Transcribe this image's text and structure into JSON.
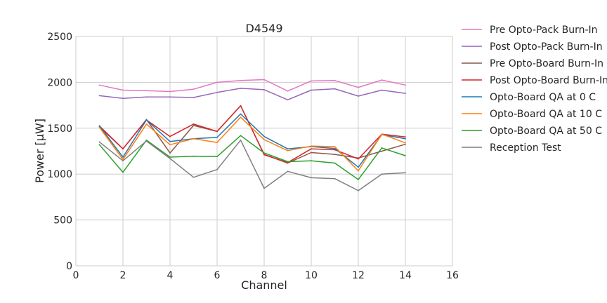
{
  "chart_data": {
    "type": "line",
    "title": "D4549",
    "xlabel": "Channel",
    "ylabel": "Power [μW]",
    "xlim": [
      0,
      16
    ],
    "ylim": [
      0,
      2500
    ],
    "xticks": [
      "0",
      "2",
      "4",
      "6",
      "8",
      "10",
      "12",
      "14",
      "16"
    ],
    "yticks": [
      "0",
      "500",
      "1000",
      "1500",
      "2000",
      "2500"
    ],
    "grid": true,
    "legend_position": "outside-right",
    "x": [
      1,
      2,
      3,
      4,
      5,
      6,
      7,
      8,
      9,
      10,
      11,
      12,
      13,
      14
    ],
    "series": [
      {
        "name": "Pre Opto-Pack Burn-In",
        "color": "#e377c2",
        "values": [
          1970,
          1915,
          1910,
          1900,
          1925,
          2000,
          2020,
          2030,
          1905,
          2015,
          2020,
          1945,
          2025,
          1970
        ]
      },
      {
        "name": "Post Opto-Pack Burn-In",
        "color": "#9467bd",
        "values": [
          1855,
          1825,
          1840,
          1840,
          1835,
          1890,
          1935,
          1920,
          1810,
          1915,
          1930,
          1850,
          1915,
          1880
        ]
      },
      {
        "name": "Pre Opto-Board Burn-In",
        "color": "#8c564b",
        "values": [
          1515,
          1275,
          1595,
          1230,
          1530,
          1465,
          1745,
          1215,
          1120,
          1235,
          1215,
          1175,
          1250,
          1325
        ]
      },
      {
        "name": "Post Opto-Board Burn-In",
        "color": "#d62728",
        "values": [
          1525,
          1275,
          1590,
          1410,
          1545,
          1465,
          1745,
          1210,
          1125,
          1275,
          1265,
          1165,
          1435,
          1405
        ]
      },
      {
        "name": "Opto-Board QA at 0 C",
        "color": "#1f77b4",
        "values": [
          1525,
          1185,
          1590,
          1355,
          1385,
          1400,
          1655,
          1410,
          1275,
          1300,
          1280,
          1075,
          1430,
          1385
        ]
      },
      {
        "name": "Opto-Board QA at 10 C",
        "color": "#ff7f0e",
        "values": [
          1510,
          1160,
          1545,
          1320,
          1385,
          1345,
          1620,
          1375,
          1255,
          1305,
          1300,
          1035,
          1435,
          1340
        ]
      },
      {
        "name": "Opto-Board QA at 50 C",
        "color": "#2ca02c",
        "values": [
          1320,
          1020,
          1370,
          1185,
          1195,
          1190,
          1420,
          1230,
          1135,
          1145,
          1120,
          940,
          1285,
          1200
        ]
      },
      {
        "name": "Reception Test",
        "color": "#7f7f7f",
        "values": [
          1350,
          1145,
          1360,
          1170,
          965,
          1050,
          1370,
          845,
          1030,
          960,
          950,
          820,
          1000,
          1015
        ]
      }
    ]
  }
}
